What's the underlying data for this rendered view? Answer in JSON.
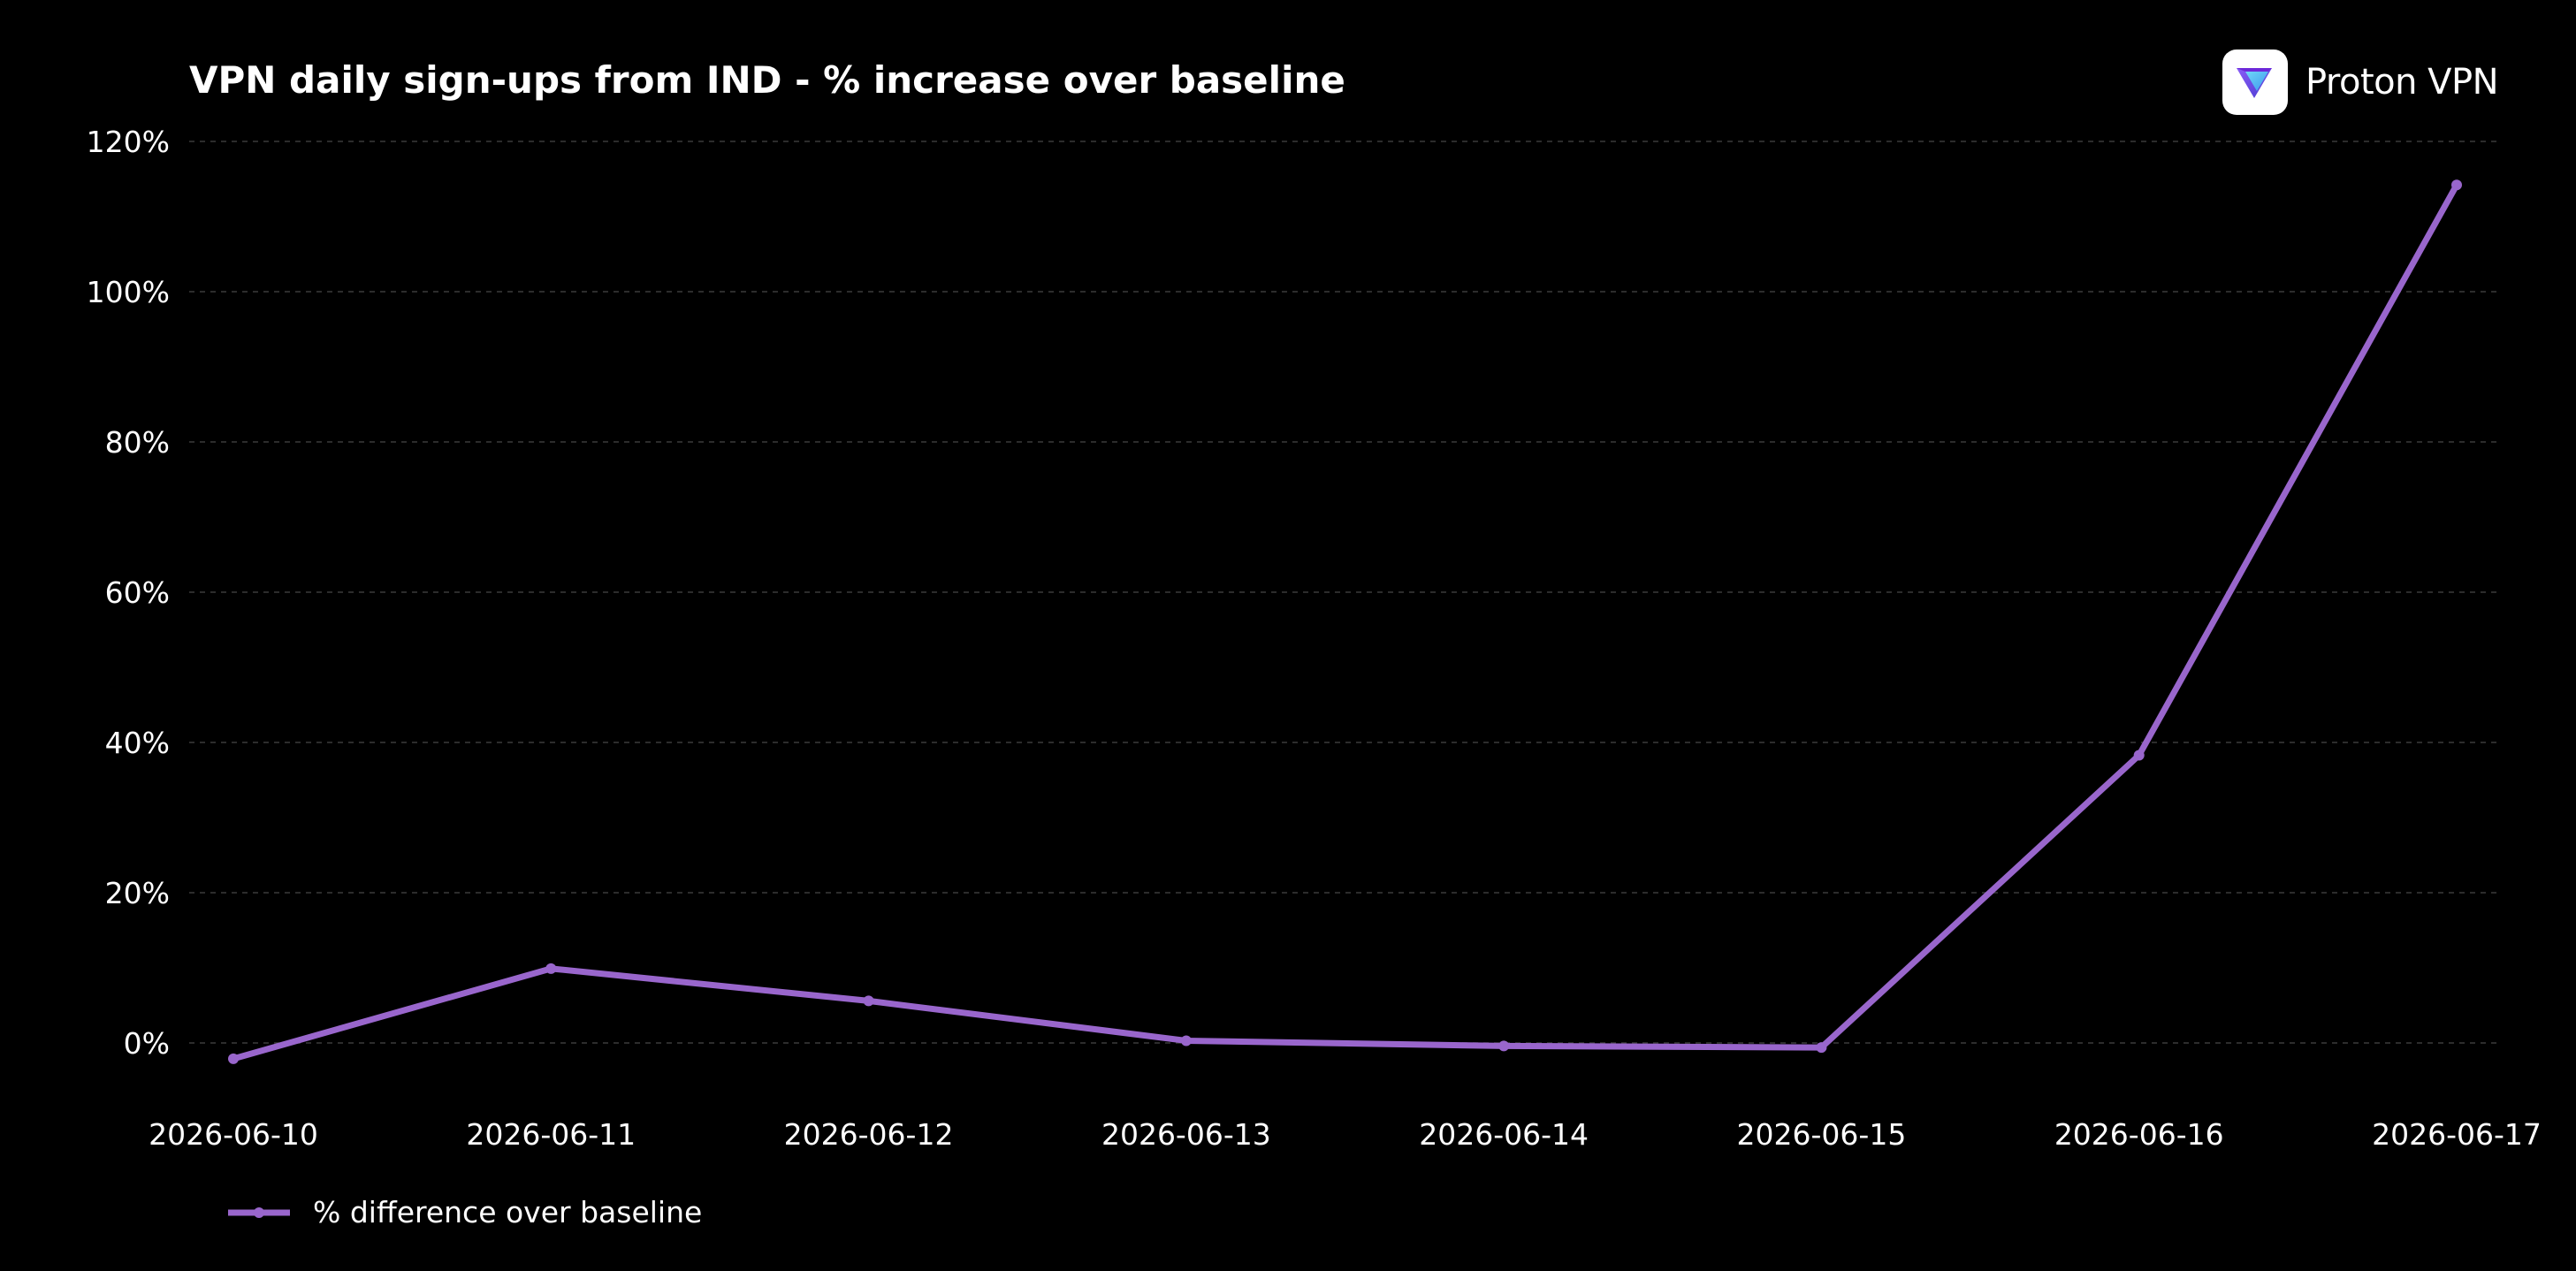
{
  "chart_data": {
    "type": "line",
    "title": "VPN daily sign-ups from IND - % increase over baseline",
    "xlabel": "",
    "ylabel": "",
    "x": [
      "2026-06-10",
      "2026-06-11",
      "2026-06-12",
      "2026-06-13",
      "2026-06-14",
      "2026-06-15",
      "2026-06-16",
      "2026-06-17"
    ],
    "series": [
      {
        "name": "% difference over baseline",
        "color": "#9966cc",
        "values": [
          -2.1,
          9.9,
          5.6,
          0.3,
          -0.4,
          -0.6,
          38.3,
          114.2
        ]
      }
    ],
    "y_ticks": [
      "0%",
      "20%",
      "40%",
      "60%",
      "80%",
      "100%",
      "120%"
    ],
    "ylim": [
      -8,
      122
    ],
    "grid": true,
    "grid_style": "dashed-horizontal",
    "legend_position": "bottom-left",
    "background": "#000000"
  },
  "brand": {
    "name": "Proton VPN",
    "logo_icon": "proton-vpn-logo-icon"
  }
}
